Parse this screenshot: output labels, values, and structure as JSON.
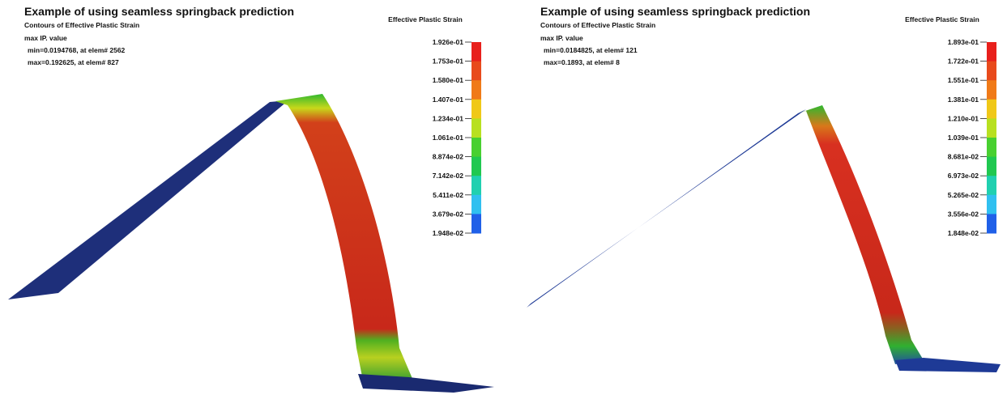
{
  "panels": [
    {
      "title": "Example of using seamless springback prediction",
      "subtitle": "Contours of Effective Plastic Strain",
      "lines": [
        "max IP. value",
        "min=0.0194768, at elem# 2562",
        "max=0.192625, at elem# 827"
      ],
      "legend_title": "Effective Plastic Strain",
      "legend_labels": [
        "1.926e-01",
        "1.753e-01",
        "1.580e-01",
        "1.407e-01",
        "1.234e-01",
        "1.061e-01",
        "8.874e-02",
        "7.142e-02",
        "5.411e-02",
        "3.679e-02",
        "1.948e-02"
      ]
    },
    {
      "title": "Example of using seamless springback prediction",
      "subtitle": "Contours of Effective Plastic Strain",
      "lines": [
        "max IP. value",
        "min=0.0184825, at elem# 121",
        "max=0.1893, at elem# 8"
      ],
      "legend_title": "Effective Plastic Strain",
      "legend_labels": [
        "1.893e-01",
        "1.722e-01",
        "1.551e-01",
        "1.381e-01",
        "1.210e-01",
        "1.039e-01",
        "8.681e-02",
        "6.973e-02",
        "5.265e-02",
        "3.556e-02",
        "1.848e-02"
      ]
    }
  ]
}
